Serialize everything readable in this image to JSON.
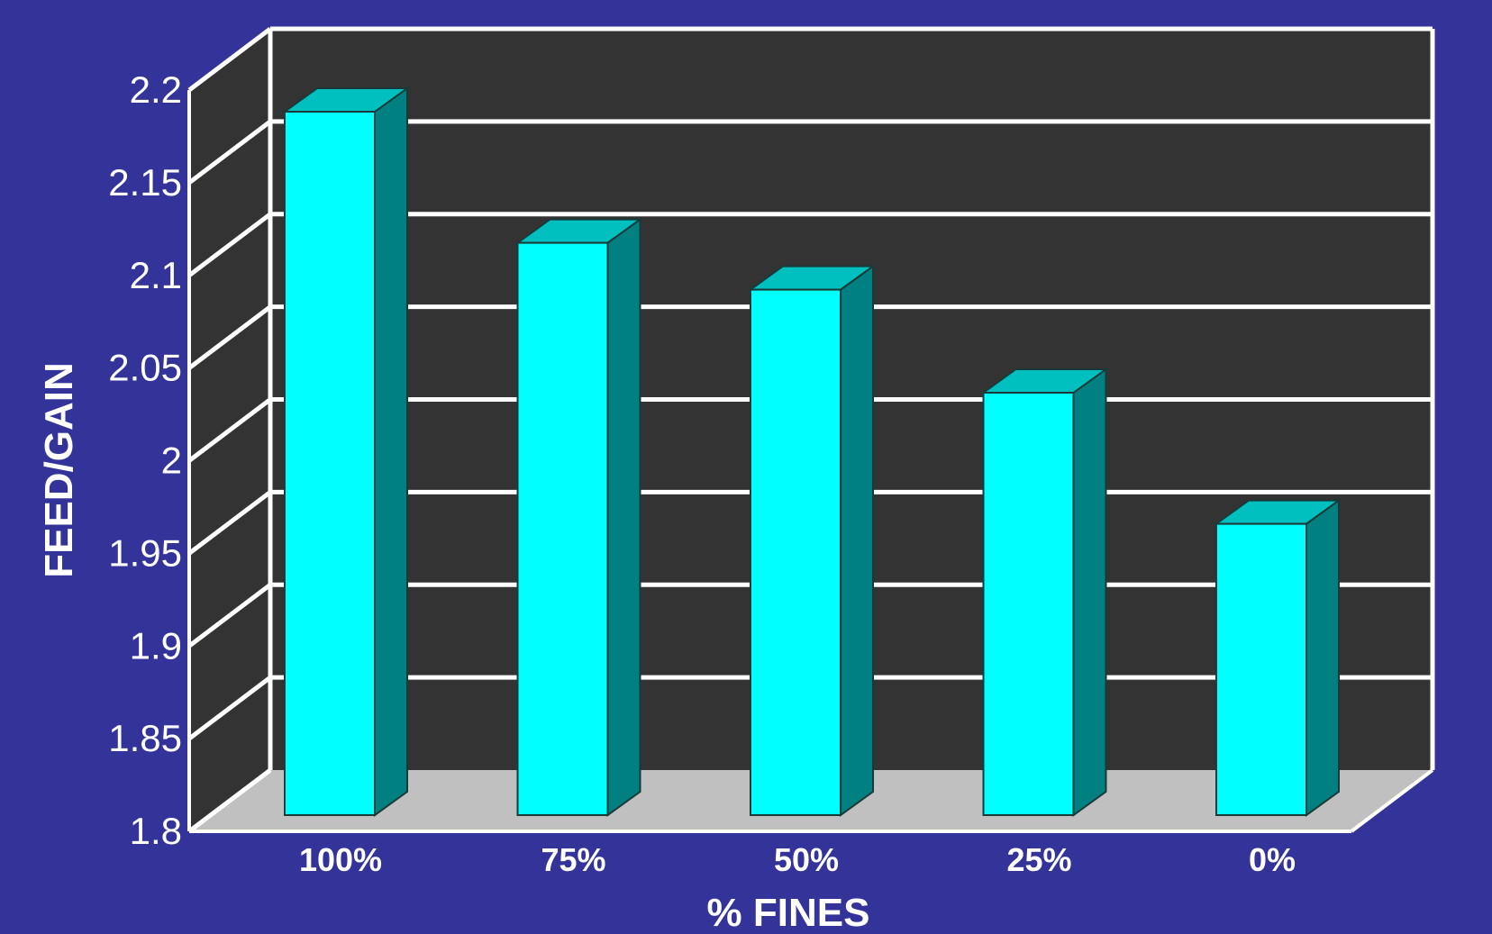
{
  "colors": {
    "background": "#333399",
    "wall": "#333333",
    "floor": "#c0c0c0",
    "grid": "#ffffff",
    "bar_front": "#00ffff",
    "bar_top": "#00bfbf",
    "bar_side": "#008080"
  },
  "chart_data": {
    "type": "bar",
    "categories": [
      "100%",
      "75%",
      "50%",
      "25%",
      "0%"
    ],
    "values": [
      2.175,
      2.105,
      2.08,
      2.025,
      1.955
    ],
    "xlabel": "% FINES",
    "ylabel": "FEED/GAIN",
    "ylim": [
      1.8,
      2.2
    ],
    "yticks": [
      "1.8",
      "1.85",
      "1.9",
      "1.95",
      "2",
      "2.05",
      "2.1",
      "2.15",
      "2.2"
    ],
    "grid": true,
    "style": "3d-bar"
  }
}
